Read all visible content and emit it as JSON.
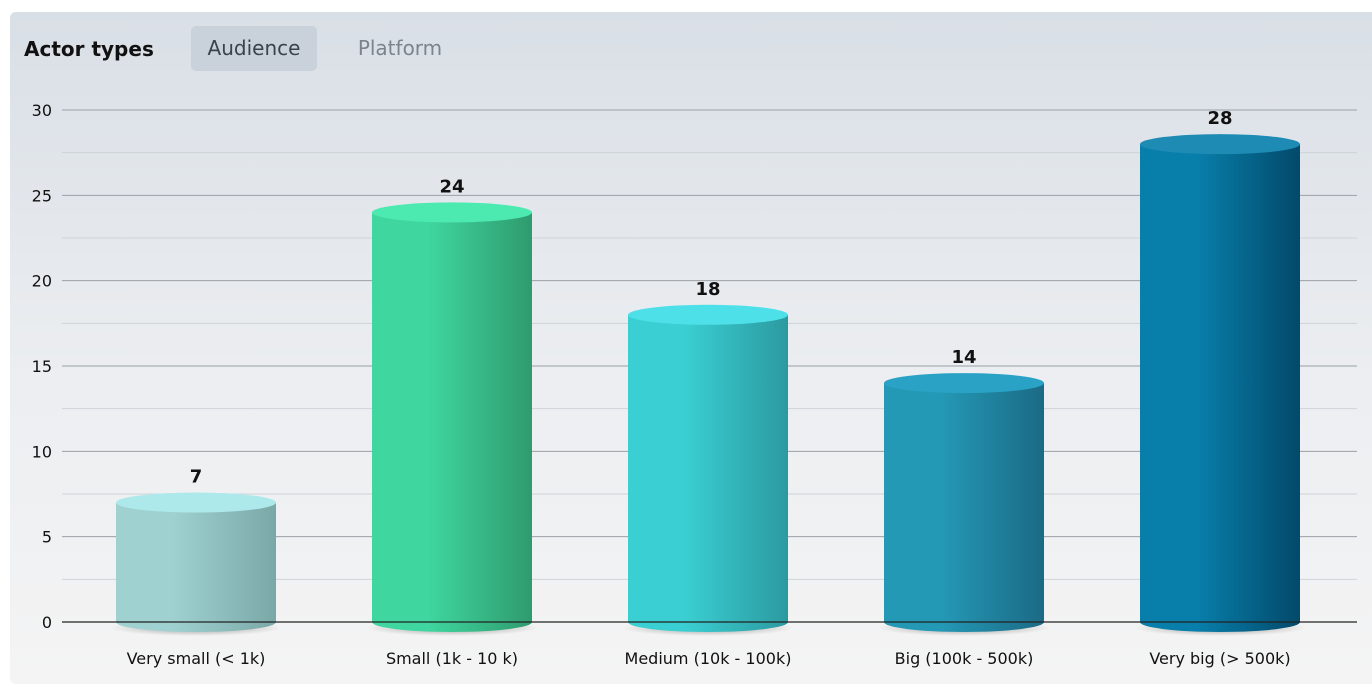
{
  "header": {
    "title": "Actor types",
    "tabs": [
      {
        "label": "Audience",
        "active": true
      },
      {
        "label": "Platform",
        "active": false
      }
    ]
  },
  "chart_data": {
    "type": "bar",
    "style": "3d-cylinder",
    "categories": [
      "Very small (< 1k)",
      "Small (1k - 10 k)",
      "Medium (10k - 100k)",
      "Big (100k - 500k)",
      "Very big (> 500k)"
    ],
    "values": [
      7,
      24,
      18,
      14,
      28
    ],
    "data_labels": true,
    "ylim": [
      0,
      30
    ],
    "yticks": [
      0,
      5,
      10,
      15,
      20,
      25,
      30
    ],
    "grid": true,
    "title": "",
    "xlabel": "",
    "ylabel": "",
    "colors": [
      [
        "#9fd1d1",
        "#7aa8a7",
        "#ade8ea"
      ],
      [
        "#3fd69f",
        "#2f9b6e",
        "#4ce9b0"
      ],
      [
        "#3acfd2",
        "#2b9aa0",
        "#4ee0e8"
      ],
      [
        "#2499b6",
        "#1b6a85",
        "#2aa2c5"
      ],
      [
        "#087fab",
        "#03496a",
        "#1e8bb4"
      ]
    ]
  }
}
